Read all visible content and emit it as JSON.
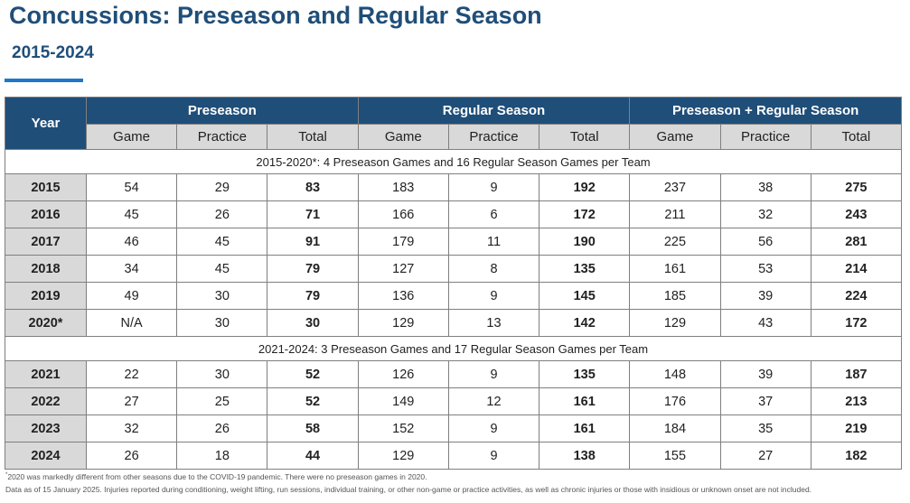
{
  "title": "Concussions: Preseason and Regular Season",
  "subtitle": "2015-2024",
  "table": {
    "year_label": "Year",
    "groups": [
      "Preseason",
      "Regular Season",
      "Preseason + Regular Season"
    ],
    "subcolumns": [
      "Game",
      "Practice",
      "Total",
      "Game",
      "Practice",
      "Total",
      "Game",
      "Practice",
      "Total"
    ],
    "sections": [
      {
        "note": "2015-2020*: 4 Preseason Games and 16 Regular Season Games per Team",
        "rows": [
          {
            "year": "2015",
            "values": [
              "54",
              "29",
              "83",
              "183",
              "9",
              "192",
              "237",
              "38",
              "275"
            ]
          },
          {
            "year": "2016",
            "values": [
              "45",
              "26",
              "71",
              "166",
              "6",
              "172",
              "211",
              "32",
              "243"
            ]
          },
          {
            "year": "2017",
            "values": [
              "46",
              "45",
              "91",
              "179",
              "11",
              "190",
              "225",
              "56",
              "281"
            ]
          },
          {
            "year": "2018",
            "values": [
              "34",
              "45",
              "79",
              "127",
              "8",
              "135",
              "161",
              "53",
              "214"
            ]
          },
          {
            "year": "2019",
            "values": [
              "49",
              "30",
              "79",
              "136",
              "9",
              "145",
              "185",
              "39",
              "224"
            ]
          },
          {
            "year": "2020*",
            "values": [
              "N/A",
              "30",
              "30",
              "129",
              "13",
              "142",
              "129",
              "43",
              "172"
            ]
          }
        ]
      },
      {
        "note": "2021-2024: 3 Preseason Games and 17 Regular Season Games per Team",
        "rows": [
          {
            "year": "2021",
            "values": [
              "22",
              "30",
              "52",
              "126",
              "9",
              "135",
              "148",
              "39",
              "187"
            ]
          },
          {
            "year": "2022",
            "values": [
              "27",
              "25",
              "52",
              "149",
              "12",
              "161",
              "176",
              "37",
              "213"
            ]
          },
          {
            "year": "2023",
            "values": [
              "32",
              "26",
              "58",
              "152",
              "9",
              "161",
              "184",
              "35",
              "219"
            ]
          },
          {
            "year": "2024",
            "values": [
              "26",
              "18",
              "44",
              "129",
              "9",
              "138",
              "155",
              "27",
              "182"
            ]
          }
        ]
      }
    ]
  },
  "footnotes": {
    "marker": "*",
    "note1": "2020 was markedly different from other seasons due to the COVID-19 pandemic. There were no preseason games in 2020.",
    "note2": "Data as of 15 January 2025. Injuries reported during conditioning, weight lifting, run sessions, individual training, or other non-game or practice activities, as well as chronic injuries or those with insidious or unknown onset are not included."
  },
  "colors": {
    "header_bg": "#1f4e79",
    "subheader_bg": "#d9d9d9",
    "accent": "#1f77c9"
  }
}
